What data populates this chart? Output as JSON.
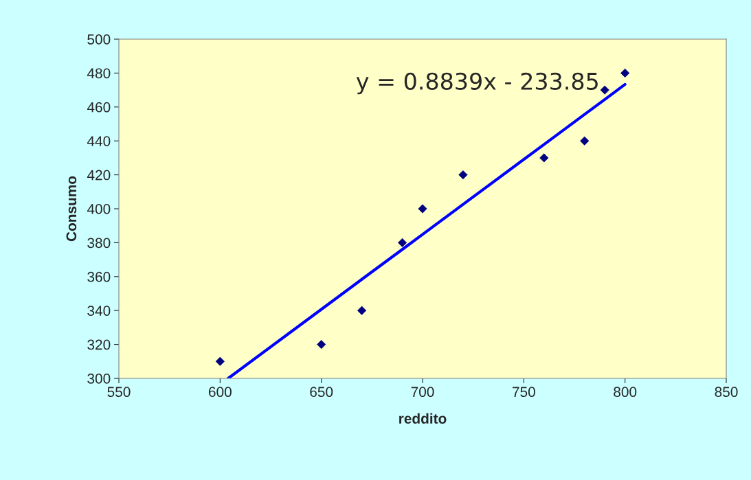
{
  "chart_data": {
    "type": "scatter",
    "xlabel": "reddito",
    "ylabel": "Consumo",
    "annotations": [
      "y = 0.8839x - 233.85"
    ],
    "xlim": [
      550,
      850
    ],
    "xticks": [
      550,
      600,
      650,
      700,
      750,
      800,
      850
    ],
    "ylim": [
      300,
      500
    ],
    "yticks": [
      300,
      320,
      340,
      360,
      380,
      400,
      420,
      440,
      460,
      480,
      500
    ],
    "grid": false,
    "legend": false,
    "marker": "diamond",
    "series": [
      {
        "color": "#000080",
        "x": [
          600,
          650,
          670,
          690,
          700,
          720,
          760,
          780,
          790,
          800
        ],
        "values": [
          310,
          320,
          340,
          380,
          400,
          420,
          430,
          440,
          470,
          480
        ]
      },
      {
        "type": "line",
        "color": "#0000ff",
        "line_style": "solid",
        "marker": "none",
        "x": [
          604,
          650,
          670,
          690,
          700,
          720,
          760,
          780,
          790,
          800
        ],
        "values": [
          300.0,
          340.7,
          358.4,
          376.0,
          384.9,
          402.6,
          437.9,
          455.6,
          464.4,
          473.3
        ]
      }
    ]
  }
}
